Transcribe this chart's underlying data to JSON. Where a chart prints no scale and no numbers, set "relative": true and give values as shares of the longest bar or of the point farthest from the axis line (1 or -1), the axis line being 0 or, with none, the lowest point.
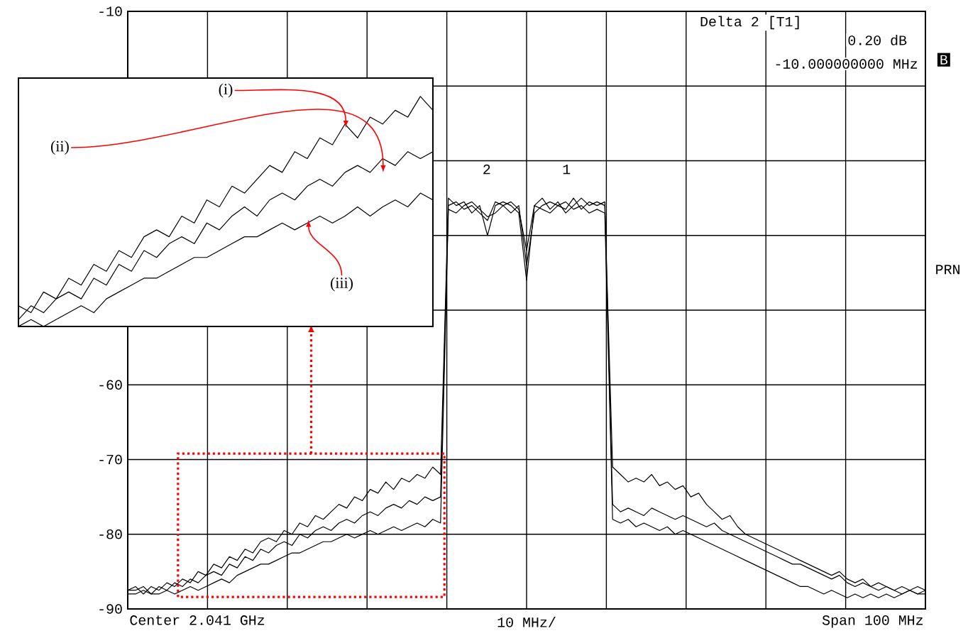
{
  "chart_data": [
    {
      "type": "line",
      "xlabel": "10 MHz/",
      "ylim": [
        -90,
        -10
      ],
      "yticks": [
        -10,
        {
          "value": -20,
          "label": null
        },
        {
          "value": -30,
          "label": null
        },
        {
          "value": -40,
          "label": null
        },
        {
          "value": -50,
          "label": null
        },
        -60,
        -70,
        -80,
        -90
      ],
      "tick_labels": "y",
      "grid": true,
      "categories": [
        null,
        null,
        null,
        null,
        null,
        null,
        null,
        null,
        null,
        null,
        null,
        null,
        null,
        null,
        null,
        null,
        null,
        null,
        null,
        null,
        null,
        null,
        null,
        null,
        null,
        null,
        null,
        null,
        null,
        null,
        null,
        null,
        null,
        null,
        null,
        null,
        null,
        null,
        null,
        null,
        null,
        null,
        null,
        null,
        null,
        null,
        null,
        null,
        null,
        null,
        null,
        null,
        null,
        null,
        null,
        null,
        null,
        null,
        null,
        null,
        null,
        null,
        null,
        null,
        null,
        null,
        null,
        null,
        null,
        null,
        null,
        null,
        null,
        null,
        null,
        null,
        null,
        null,
        null,
        null,
        null,
        null,
        null,
        null,
        null,
        null,
        null,
        null,
        null,
        null,
        null,
        null,
        null,
        null,
        null,
        null,
        null,
        null,
        null,
        null,
        null,
        null,
        null
      ],
      "series": [
        {
          "color": "#000000",
          "values": [
            -87.5,
            -87,
            -88,
            -87,
            -87.5,
            -86.5,
            -87,
            -86,
            -86.5,
            -85,
            -85.5,
            -84,
            -84.5,
            -83,
            -83.5,
            -82,
            -82.5,
            -81,
            -80.5,
            -81,
            -79.5,
            -80,
            -78.5,
            -79,
            -77.5,
            -78,
            -77,
            -76,
            -76.5,
            -75,
            -75.5,
            -74,
            -74.5,
            -73,
            -74,
            -72.5,
            -73,
            -72,
            -72.5,
            -71,
            -72,
            -35,
            -36,
            -35.5,
            -37,
            -36,
            -40,
            -36,
            -35.5,
            -36,
            -37,
            -46,
            -36,
            -35,
            -36.5,
            -35.5,
            -37,
            -36,
            -35,
            -36,
            -35.5,
            -36,
            -71,
            -72,
            -73,
            -72.5,
            -73,
            -72,
            -73.5,
            -73,
            -74,
            -73.5,
            -75,
            -74.5,
            -76,
            -77,
            -78,
            -77.5,
            -79,
            -80,
            -80.5,
            -81,
            -81.5,
            -82,
            -82.5,
            -83,
            -83.5,
            -84,
            -84.5,
            -85,
            -85.5,
            -85,
            -86,
            -86.5,
            -86,
            -87,
            -86.5,
            -87,
            -87.5,
            -87,
            -87.5,
            -88,
            -87.5
          ]
        },
        {
          "color": "#000000",
          "values": [
            -87.5,
            -87.5,
            -87,
            -88,
            -87,
            -87.5,
            -86.5,
            -87,
            -86,
            -86.5,
            -85.5,
            -85,
            -85.5,
            -84,
            -84.5,
            -83,
            -83.5,
            -82,
            -82.5,
            -81.5,
            -81,
            -81.5,
            -80,
            -80.5,
            -79.5,
            -79,
            -79.5,
            -78.5,
            -78,
            -78.5,
            -77.5,
            -77,
            -77.5,
            -76.5,
            -76,
            -76.5,
            -75.5,
            -76,
            -75,
            -75.5,
            -75,
            -36,
            -35.5,
            -36.5,
            -36,
            -37,
            -38,
            -35.5,
            -36,
            -37,
            -36,
            -44,
            -37,
            -36,
            -35.5,
            -36,
            -36.5,
            -35,
            -36.5,
            -35.5,
            -36,
            -35.5,
            -76,
            -77,
            -76.5,
            -77,
            -77.5,
            -76.5,
            -77,
            -77.5,
            -78,
            -77.5,
            -78,
            -78.5,
            -79,
            -78.5,
            -79.5,
            -80,
            -80.5,
            -81,
            -81.5,
            -82,
            -82.5,
            -83,
            -83.5,
            -84,
            -84,
            -84.5,
            -85,
            -85.5,
            -86,
            -85.5,
            -86.5,
            -87,
            -86.5,
            -87,
            -87.5,
            -87,
            -87.5,
            -88,
            -87.5,
            -87,
            -87.5
          ]
        },
        {
          "color": "#000000",
          "values": [
            -88,
            -88,
            -87.5,
            -88,
            -88,
            -87.5,
            -88,
            -87.5,
            -87,
            -87.5,
            -87,
            -86.5,
            -86,
            -86.5,
            -85.5,
            -85,
            -84.5,
            -84,
            -84,
            -83.5,
            -83,
            -82.5,
            -82.5,
            -82,
            -81.5,
            -81,
            -81,
            -80.5,
            -80,
            -80.5,
            -80,
            -79.5,
            -80,
            -79.5,
            -79,
            -79.5,
            -79,
            -78.5,
            -79,
            -78,
            -78.5,
            -36.5,
            -37,
            -36,
            -35.5,
            -36.5,
            -37.5,
            -37,
            -36,
            -35.5,
            -36.5,
            -42,
            -36,
            -36.5,
            -37,
            -36,
            -35.5,
            -36.5,
            -36,
            -37,
            -36.5,
            -37,
            -78,
            -78.5,
            -78,
            -79,
            -78.5,
            -79,
            -79.5,
            -79,
            -80,
            -79.5,
            -80,
            -80.5,
            -81,
            -81.5,
            -82,
            -82.5,
            -83,
            -83.5,
            -84,
            -84.5,
            -85,
            -85.5,
            -86,
            -86.5,
            -87,
            -87,
            -87.5,
            -88,
            -87.5,
            -88,
            -88.5,
            -88,
            -88.5,
            -88,
            -88.5,
            -88,
            -88.5,
            -88,
            -87.5,
            -88,
            -88
          ]
        }
      ],
      "annotations": [
        "Delta 2 [T1]",
        "0.20 dB",
        "-10.000000000 MHz",
        "B",
        "PRN",
        "Center 2.041 GHz",
        "Span 100 MHz",
        "2",
        "1"
      ]
    },
    {
      "type": "line",
      "relative": true,
      "categories": [
        null,
        null,
        null,
        null,
        null,
        null,
        null,
        null,
        null,
        null,
        null,
        null,
        null,
        null,
        null,
        null,
        null,
        null,
        null,
        null,
        null,
        null,
        null,
        null,
        null,
        null,
        null,
        null,
        null,
        null,
        null,
        null,
        null,
        null
      ],
      "series": [
        {
          "color": "#000000",
          "values": [
            0.09,
            0.06,
            0.15,
            0.12,
            0.21,
            0.18,
            0.27,
            0.24,
            0.33,
            0.3,
            0.39,
            0.42,
            0.39,
            0.48,
            0.45,
            0.55,
            0.52,
            0.61,
            0.58,
            0.64,
            0.7,
            0.67,
            0.76,
            0.73,
            0.82,
            0.79,
            0.88,
            0.82,
            0.91,
            0.88,
            0.94,
            0.91,
            1,
            0.94
          ]
        },
        {
          "color": "#000000",
          "values": [
            0.03,
            0.09,
            0.06,
            0.12,
            0.15,
            0.12,
            0.21,
            0.18,
            0.27,
            0.24,
            0.33,
            0.3,
            0.36,
            0.39,
            0.36,
            0.45,
            0.42,
            0.48,
            0.52,
            0.48,
            0.55,
            0.58,
            0.55,
            0.61,
            0.64,
            0.61,
            0.67,
            0.7,
            0.67,
            0.73,
            0.7,
            0.76,
            0.73,
            0.76
          ]
        },
        {
          "color": "#000000",
          "values": [
            0,
            0.03,
            0,
            0.03,
            0.06,
            0.09,
            0.06,
            0.12,
            0.15,
            0.18,
            0.21,
            0.21,
            0.24,
            0.27,
            0.3,
            0.3,
            0.33,
            0.36,
            0.39,
            0.39,
            0.42,
            0.45,
            0.42,
            0.45,
            0.48,
            0.45,
            0.48,
            0.52,
            0.48,
            0.52,
            0.55,
            0.52,
            0.58,
            0.55
          ]
        }
      ],
      "annotations": [
        "(i)",
        "(ii)",
        "(iii)"
      ]
    }
  ]
}
